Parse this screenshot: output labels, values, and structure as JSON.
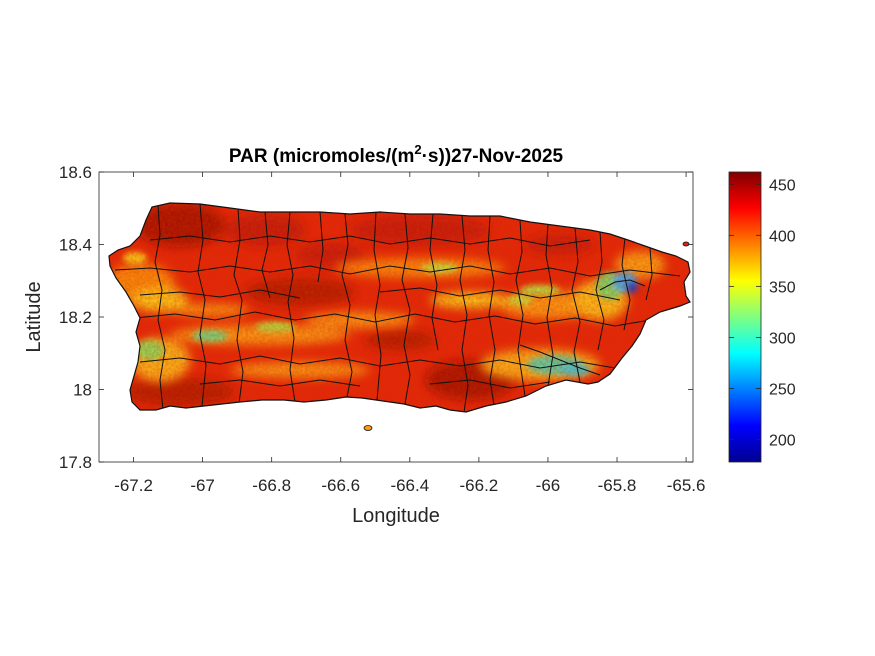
{
  "chart_data": {
    "type": "heatmap",
    "title": {
      "prefix": "PAR (micromoles/(m",
      "superscript": "2",
      "suffix": "·s))27-Nov-2025"
    },
    "xlabel": "Longitude",
    "ylabel": "Latitude",
    "xlim": [
      -67.3,
      -65.58
    ],
    "ylim": [
      17.8,
      18.6
    ],
    "x_ticks": [
      -67.2,
      -67,
      -66.8,
      -66.6,
      -66.4,
      -66.2,
      -66,
      -65.8,
      -65.6
    ],
    "x_tick_labels": [
      "-67.2",
      "-67",
      "-66.8",
      "-66.6",
      "-66.4",
      "-66.2",
      "-66",
      "-65.8",
      "-65.6"
    ],
    "y_ticks": [
      17.8,
      18,
      18.2,
      18.4,
      18.6
    ],
    "y_tick_labels": [
      "17.8",
      "18",
      "18.2",
      "18.4",
      "18.6"
    ],
    "colorbar": {
      "colormap": "jet",
      "range": [
        178,
        462
      ],
      "ticks": [
        200,
        250,
        300,
        350,
        400,
        450
      ],
      "tick_labels": [
        "200",
        "250",
        "300",
        "350",
        "400",
        "450"
      ]
    },
    "region": "Puerto Rico",
    "notable_values": [
      {
        "lon": -65.78,
        "lat": 18.28,
        "value": 190
      },
      {
        "lon": -66.0,
        "lat": 18.05,
        "value": 310
      },
      {
        "lon": -67.15,
        "lat": 18.1,
        "value": 320
      },
      {
        "lon": -66.85,
        "lat": 18.17,
        "value": 340
      },
      {
        "lon": -66.8,
        "lat": 18.45,
        "value": 445
      },
      {
        "lon": -66.35,
        "lat": 18.0,
        "value": 450
      }
    ],
    "typical_value_range": [
      330,
      460
    ],
    "colors": {
      "axis": "#262626",
      "boundaries": "#000000",
      "background": "#ffffff"
    }
  }
}
